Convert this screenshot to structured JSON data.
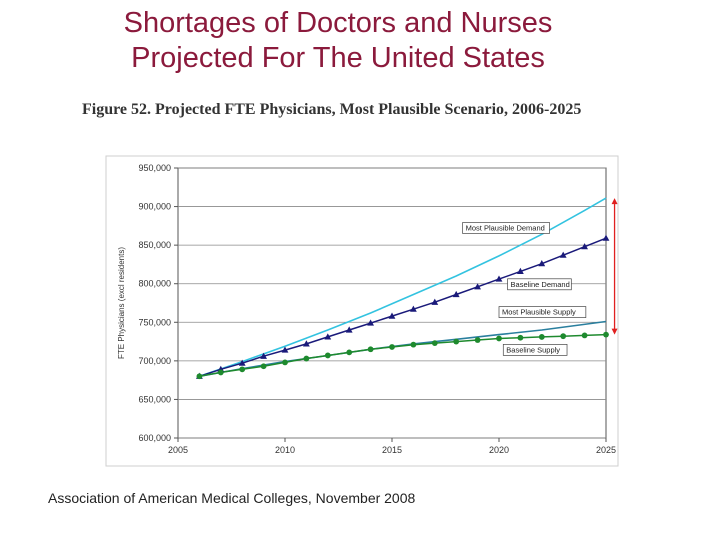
{
  "slide": {
    "title_line1": "Shortages of Doctors and Nurses",
    "title_line2": "Projected For The United States",
    "source": "Association of American Medical Colleges, November 2008"
  },
  "colors": {
    "title": "#8b1a3c",
    "most_plausible_demand": "#33c3e0",
    "baseline_demand": "#1a1a7a",
    "most_plausible_supply": "#2a7f9e",
    "baseline_supply": "#1e8a2e",
    "gap_arrow": "#e02020"
  },
  "chart_data": {
    "type": "line",
    "title": "Figure 52. Projected FTE Physicians, Most Plausible Scenario, 2006-2025",
    "xlabel": "",
    "ylabel": "FTE Physicians (excl residents)",
    "xlim": [
      2005,
      2025
    ],
    "ylim": [
      600000,
      950000
    ],
    "xticks": [
      "2005",
      "2010",
      "2015",
      "2020",
      "2025"
    ],
    "yticks": [
      "600,000",
      "650,000",
      "700,000",
      "750,000",
      "800,000",
      "850,000",
      "900,000",
      "950,000"
    ],
    "grid": "horizontal",
    "series": [
      {
        "name": "Most Plausible Demand",
        "marker": "none",
        "x": [
          2006,
          2008,
          2010,
          2012,
          2014,
          2016,
          2018,
          2020,
          2022,
          2024,
          2025
        ],
        "y": [
          680000,
          699000,
          719000,
          740000,
          762000,
          786000,
          810000,
          836000,
          864000,
          895000,
          911000
        ]
      },
      {
        "name": "Baseline Demand",
        "marker": "triangle",
        "x": [
          2006,
          2007,
          2008,
          2009,
          2010,
          2011,
          2012,
          2013,
          2014,
          2015,
          2016,
          2017,
          2018,
          2019,
          2020,
          2021,
          2022,
          2023,
          2024,
          2025
        ],
        "y": [
          680000,
          689000,
          697000,
          706000,
          714000,
          722000,
          731000,
          740000,
          749000,
          758000,
          767000,
          776000,
          786000,
          796000,
          806000,
          816000,
          826000,
          837000,
          848000,
          859000
        ]
      },
      {
        "name": "Most Plausible Supply",
        "marker": "none",
        "x": [
          2006,
          2008,
          2010,
          2012,
          2014,
          2016,
          2018,
          2020,
          2022,
          2025
        ],
        "y": [
          680000,
          690000,
          699000,
          707000,
          715000,
          722000,
          728000,
          734000,
          740000,
          751000
        ]
      },
      {
        "name": "Baseline Supply",
        "marker": "circle",
        "x": [
          2006,
          2007,
          2008,
          2009,
          2010,
          2011,
          2012,
          2013,
          2014,
          2015,
          2016,
          2017,
          2018,
          2019,
          2020,
          2021,
          2022,
          2023,
          2024,
          2025
        ],
        "y": [
          680000,
          685000,
          689000,
          693000,
          698000,
          703000,
          707000,
          711000,
          715000,
          718000,
          721000,
          723000,
          725000,
          727000,
          729000,
          730000,
          731000,
          732000,
          733000,
          734000
        ]
      }
    ],
    "annotations": [
      {
        "text": "Most Plausible Demand",
        "anchor": [
          2018.3,
          869000
        ]
      },
      {
        "text": "Baseline Demand",
        "anchor": [
          2020.4,
          796000
        ]
      },
      {
        "text": "Most Plausible Supply",
        "anchor": [
          2020.0,
          760000
        ]
      },
      {
        "text": "Baseline Supply",
        "anchor": [
          2020.2,
          711000
        ]
      }
    ],
    "gap_arrow": {
      "x": 2025.4,
      "y_from": 734000,
      "y_to": 911000
    }
  }
}
